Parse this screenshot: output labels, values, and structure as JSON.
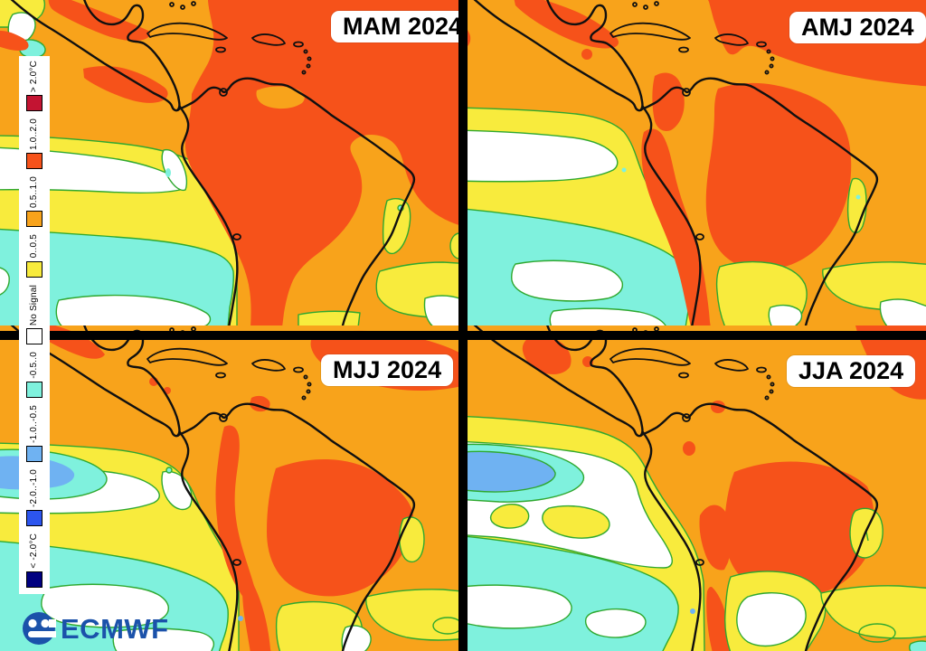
{
  "panels": [
    {
      "label": "MAM 2024"
    },
    {
      "label": "AMJ 2024"
    },
    {
      "label": "MJJ 2024"
    },
    {
      "label": "JJA 2024"
    }
  ],
  "legend": {
    "entries": [
      {
        "label": "> 2.0°C",
        "color": "#C31432"
      },
      {
        "label": "1.0..2.0",
        "color": "#F6521A"
      },
      {
        "label": "0.5..1.0",
        "color": "#F8A31B"
      },
      {
        "label": "0..0.5",
        "color": "#F8EB3D"
      },
      {
        "label": "No Signal",
        "color": "#FFFFFF"
      },
      {
        "label": "-0.5..0",
        "color": "#7FF1DD"
      },
      {
        "label": "-1.0..-0.5",
        "color": "#6FB2F2"
      },
      {
        "label": "-2.0..-1.0",
        "color": "#2C55EE"
      },
      {
        "label": "< -2.0°C",
        "color": "#000080"
      }
    ]
  },
  "branding": {
    "text": "ECMWF"
  },
  "colors": {
    "orange": "#F8A31B",
    "red": "#F6521A",
    "yellow": "#F8EB3D",
    "white": "#FFFFFF",
    "cyan": "#7FF1DD",
    "lightblue": "#6FB2F2",
    "blue": "#2C55EE",
    "navy": "#000080",
    "crimson": "#C31432",
    "green": "#2FA82F",
    "coast": "#101010",
    "logo": "#1B52AA",
    "divider": "#000000"
  },
  "map_data": {
    "type": "filled_contour_map_grid",
    "unit": "°C",
    "season_panels": [
      "MAM 2024",
      "AMJ 2024",
      "MJJ 2024",
      "JJA 2024"
    ]
  }
}
